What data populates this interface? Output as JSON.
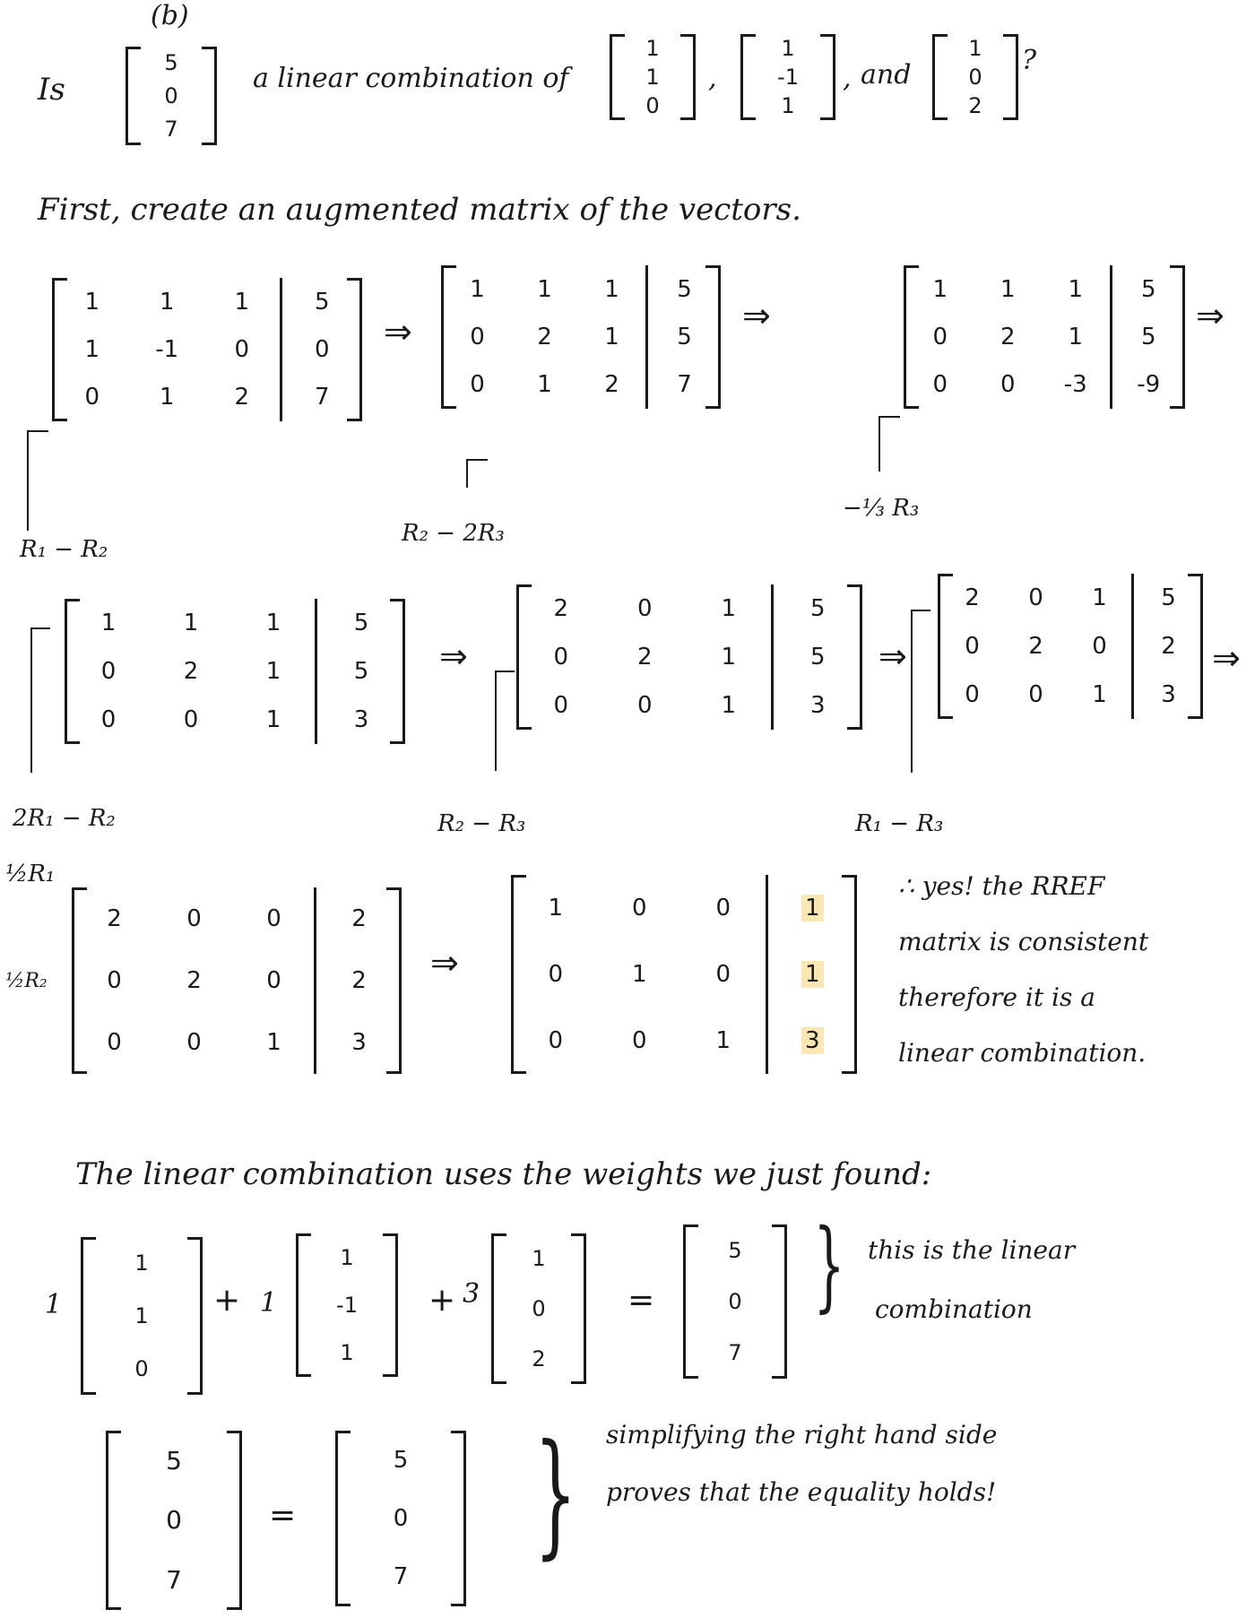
{
  "question": {
    "lead": "Is",
    "b_label": "(b)",
    "b_vector": [
      "5",
      "0",
      "7"
    ],
    "middle": "a linear combination of",
    "vectors": [
      [
        "1",
        "1",
        "0"
      ],
      [
        "1",
        "-1",
        "1"
      ],
      [
        "1",
        "0",
        "2"
      ]
    ],
    "sep1": ",",
    "sep2": ",",
    "and": "and",
    "qmark": "?"
  },
  "intro": "First, create an augmented matrix of the vectors.",
  "arrow": "⇒",
  "matrices": [
    {
      "rows": [
        [
          "1",
          "1",
          "1",
          "5"
        ],
        [
          "1",
          "-1",
          "0",
          "0"
        ],
        [
          "0",
          "1",
          "2",
          "7"
        ]
      ]
    },
    {
      "rows": [
        [
          "1",
          "1",
          "1",
          "5"
        ],
        [
          "0",
          "2",
          "1",
          "5"
        ],
        [
          "0",
          "1",
          "2",
          "7"
        ]
      ]
    },
    {
      "rows": [
        [
          "1",
          "1",
          "1",
          "5"
        ],
        [
          "0",
          "2",
          "1",
          "5"
        ],
        [
          "0",
          "0",
          "-3",
          "-9"
        ]
      ]
    },
    {
      "rows": [
        [
          "1",
          "1",
          "1",
          "5"
        ],
        [
          "0",
          "2",
          "1",
          "5"
        ],
        [
          "0",
          "0",
          "1",
          "3"
        ]
      ]
    },
    {
      "rows": [
        [
          "2",
          "0",
          "1",
          "5"
        ],
        [
          "0",
          "2",
          "1",
          "5"
        ],
        [
          "0",
          "0",
          "1",
          "3"
        ]
      ]
    },
    {
      "rows": [
        [
          "2",
          "0",
          "1",
          "5"
        ],
        [
          "0",
          "2",
          "0",
          "2"
        ],
        [
          "0",
          "0",
          "1",
          "3"
        ]
      ]
    },
    {
      "rows": [
        [
          "2",
          "0",
          "0",
          "2"
        ],
        [
          "0",
          "2",
          "0",
          "2"
        ],
        [
          "0",
          "0",
          "1",
          "3"
        ]
      ]
    },
    {
      "rows": [
        [
          "1",
          "0",
          "0",
          "1"
        ],
        [
          "0",
          "1",
          "0",
          "1"
        ],
        [
          "0",
          "0",
          "1",
          "3"
        ]
      ]
    }
  ],
  "row_ops": {
    "op1": "R₁ − R₂",
    "op2": "R₂ − 2R₃",
    "op3": "−⅓ R₃",
    "op4": "2R₁ − R₂",
    "op5": "R₂ − R₃",
    "op6": "R₁ − R₃",
    "op7a": "½R₁",
    "op7b": "½R₂"
  },
  "conclusion": [
    "∴ yes! the RREF",
    "matrix is consistent",
    "therefore it is a",
    "linear combination."
  ],
  "weights_line": "The linear combination uses the weights we just found:",
  "combo": {
    "w1": "1",
    "w2": "1",
    "w3": "3",
    "plus": "+",
    "equals": "=",
    "note": [
      "this is the linear",
      "combination"
    ]
  },
  "final": {
    "lhs": [
      "5",
      "0",
      "7"
    ],
    "rhs": [
      "5",
      "0",
      "7"
    ],
    "equals": "=",
    "note": [
      "simplifying the right hand side",
      "proves that the equality holds!"
    ]
  }
}
